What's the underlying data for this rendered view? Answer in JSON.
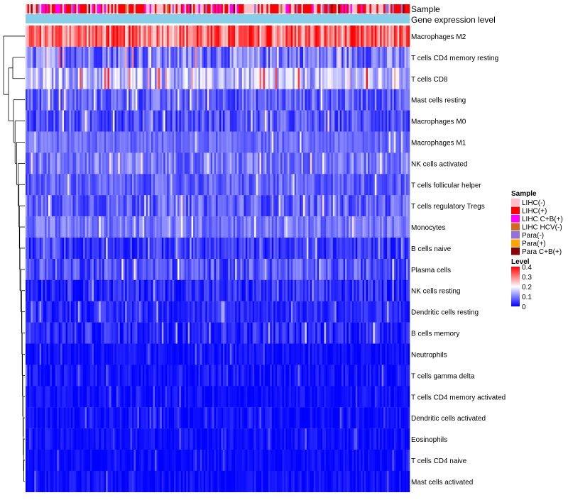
{
  "chart_data": {
    "type": "heatmap",
    "title": "",
    "annotation_tracks": [
      "Sample",
      "Gene expression level"
    ],
    "rows": [
      {
        "name": "Macrophages M2",
        "mean_level": 0.3,
        "spread": 0.09
      },
      {
        "name": "T cells CD4 memory resting",
        "mean_level": 0.09,
        "spread": 0.07
      },
      {
        "name": "T cells CD8",
        "mean_level": 0.14,
        "spread": 0.07
      },
      {
        "name": "Mast cells resting",
        "mean_level": 0.07,
        "spread": 0.05
      },
      {
        "name": "Macrophages M0",
        "mean_level": 0.06,
        "spread": 0.05
      },
      {
        "name": "Macrophages M1",
        "mean_level": 0.08,
        "spread": 0.03
      },
      {
        "name": "NK cells activated",
        "mean_level": 0.09,
        "spread": 0.05
      },
      {
        "name": "T cells follicular helper",
        "mean_level": 0.07,
        "spread": 0.04
      },
      {
        "name": "T cells regulatory  Tregs",
        "mean_level": 0.07,
        "spread": 0.05
      },
      {
        "name": "Monocytes",
        "mean_level": 0.09,
        "spread": 0.04
      },
      {
        "name": "B cells naive",
        "mean_level": 0.04,
        "spread": 0.04
      },
      {
        "name": "Plasma cells",
        "mean_level": 0.06,
        "spread": 0.05
      },
      {
        "name": "NK cells resting",
        "mean_level": 0.03,
        "spread": 0.04
      },
      {
        "name": "Dendritic cells resting",
        "mean_level": 0.03,
        "spread": 0.03
      },
      {
        "name": "B cells memory",
        "mean_level": 0.03,
        "spread": 0.04
      },
      {
        "name": "Neutrophils",
        "mean_level": 0.01,
        "spread": 0.02
      },
      {
        "name": "T cells gamma delta",
        "mean_level": 0.01,
        "spread": 0.03
      },
      {
        "name": "T cells CD4 memory activated",
        "mean_level": 0.01,
        "spread": 0.02
      },
      {
        "name": "Dendritic cells activated",
        "mean_level": 0.01,
        "spread": 0.02
      },
      {
        "name": "Eosinophils",
        "mean_level": 0.01,
        "spread": 0.02
      },
      {
        "name": "T cells CD4 naive",
        "mean_level": 0.005,
        "spread": 0.02
      },
      {
        "name": "Mast cells activated",
        "mean_level": 0.01,
        "spread": 0.02
      }
    ],
    "num_samples": 220,
    "sample_legend": {
      "title": "Sample",
      "entries": [
        {
          "label": "LIHC(-)",
          "color": "#ffc0cb"
        },
        {
          "label": "LIHC(+)",
          "color": "#ff0000"
        },
        {
          "label": "LIHC C+B(+)",
          "color": "#ff00ff"
        },
        {
          "label": "LIHC HCV(-)",
          "color": "#d2691e"
        },
        {
          "label": "Para(-)",
          "color": "#9370db"
        },
        {
          "label": "Para(+)",
          "color": "#ffa500"
        },
        {
          "label": "Para C+B(+)",
          "color": "#8b0000"
        }
      ]
    },
    "level_legend": {
      "title": "Level",
      "ticks": [
        "0.4",
        "0.3",
        "0.2",
        "0.1",
        "0"
      ],
      "range": [
        0,
        0.4
      ],
      "colors": [
        "#0000ff",
        "#ffffff",
        "#ff0000"
      ]
    },
    "expression_track_color": "#87ceeb",
    "dendrogram": "left, hierarchical clustering of rows"
  }
}
